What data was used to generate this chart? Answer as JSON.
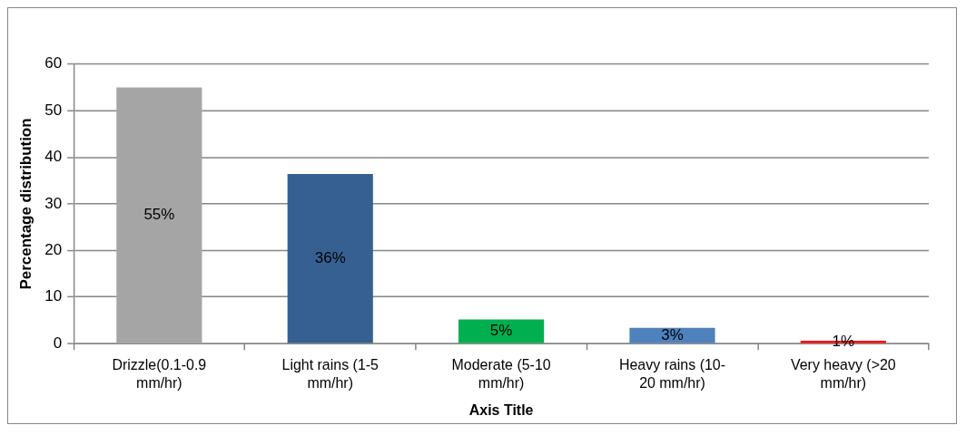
{
  "chart_data": {
    "type": "bar",
    "categories": [
      "Drizzle(0.1-0.9 mm/hr)",
      "Light rains (1-5 mm/hr)",
      "Moderate (5-10 mm/hr)",
      "Heavy rains (10-20 mm/hr)",
      "Very heavy (>20 mm/hr)"
    ],
    "values": [
      55,
      36.4,
      5.2,
      3.4,
      0.6
    ],
    "colors": [
      "#a5a5a5",
      "#376092",
      "#00b050",
      "#4f81bd",
      "#ff0000"
    ],
    "value_labels": [
      "55%",
      "36%",
      "5%",
      "3%",
      "1%"
    ],
    "xlabel": "Axis Title",
    "ylabel": "Percentage distribution",
    "ylim": [
      0,
      60
    ],
    "yticks": [
      0,
      10,
      20,
      30,
      40,
      50,
      60
    ],
    "grid": "y"
  }
}
